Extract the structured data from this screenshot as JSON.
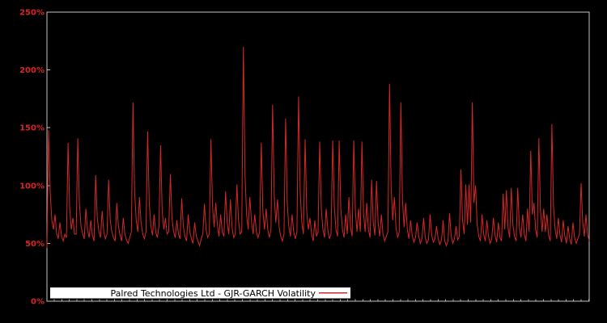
{
  "chart_data": {
    "type": "line",
    "title": "",
    "xlabel": "",
    "ylabel": "",
    "legend": "Palred Technologies Ltd - GJR-GARCH Volatility",
    "legend_position": "bottom-left-inside",
    "grid": false,
    "background_color": "#000000",
    "axis_color": "#c4c4c4",
    "line_color": "#d62728",
    "tick_label_color": "#d62728",
    "legend_bg_color": "#ffffff",
    "legend_text_color": "#000000",
    "ylim": [
      0,
      250
    ],
    "yticks": [
      250,
      200,
      150,
      100,
      50,
      0
    ],
    "ytick_labels": [
      "250%",
      "200%",
      "150%",
      "100%",
      "50%",
      "0%"
    ],
    "y_unit": "percent",
    "values": [
      46,
      148,
      95,
      70,
      62,
      75,
      58,
      54,
      68,
      56,
      52,
      58,
      55,
      137,
      80,
      62,
      72,
      58,
      58,
      141,
      85,
      65,
      58,
      54,
      80,
      62,
      55,
      70,
      57,
      52,
      109,
      72,
      60,
      55,
      78,
      60,
      54,
      58,
      105,
      70,
      60,
      55,
      52,
      85,
      65,
      57,
      52,
      72,
      58,
      53,
      50,
      55,
      60,
      172,
      95,
      70,
      60,
      90,
      68,
      58,
      54,
      60,
      147,
      85,
      65,
      57,
      75,
      60,
      55,
      65,
      135,
      78,
      62,
      72,
      58,
      60,
      110,
      72,
      60,
      55,
      70,
      58,
      54,
      89,
      65,
      56,
      52,
      75,
      60,
      54,
      50,
      68,
      56,
      52,
      48,
      54,
      58,
      84,
      62,
      55,
      58,
      140,
      82,
      64,
      85,
      66,
      56,
      75,
      60,
      56,
      95,
      68,
      58,
      88,
      64,
      55,
      58,
      101,
      70,
      58,
      60,
      220,
      110,
      75,
      62,
      90,
      68,
      58,
      75,
      60,
      55,
      60,
      137,
      78,
      62,
      80,
      62,
      55,
      62,
      170,
      92,
      68,
      88,
      64,
      56,
      52,
      58,
      158,
      85,
      64,
      56,
      75,
      60,
      54,
      60,
      177,
      95,
      68,
      58,
      140,
      78,
      62,
      72,
      58,
      52,
      70,
      56,
      60,
      138,
      80,
      62,
      55,
      80,
      62,
      54,
      58,
      139,
      82,
      62,
      56,
      139,
      80,
      62,
      55,
      75,
      58,
      90,
      64,
      56,
      139,
      78,
      60,
      80,
      60,
      138,
      76,
      60,
      85,
      62,
      55,
      105,
      68,
      57,
      104,
      68,
      56,
      75,
      58,
      52,
      56,
      60,
      188,
      98,
      70,
      90,
      64,
      55,
      60,
      172,
      88,
      64,
      85,
      62,
      54,
      70,
      57,
      51,
      55,
      68,
      56,
      50,
      54,
      72,
      55,
      50,
      53,
      75,
      57,
      51,
      54,
      65,
      54,
      49,
      53,
      70,
      52,
      48,
      52,
      76,
      56,
      50,
      54,
      65,
      53,
      56,
      114,
      70,
      58,
      101,
      66,
      101,
      68,
      172,
      85,
      100,
      66,
      56,
      52,
      75,
      58,
      52,
      70,
      56,
      50,
      54,
      72,
      57,
      51,
      68,
      55,
      52,
      93,
      62,
      96,
      64,
      55,
      98,
      66,
      56,
      52,
      98,
      64,
      55,
      75,
      58,
      52,
      80,
      60,
      130,
      75,
      85,
      62,
      55,
      141,
      78,
      60,
      80,
      60,
      75,
      57,
      52,
      153,
      82,
      62,
      54,
      72,
      57,
      51,
      70,
      56,
      50,
      65,
      54,
      49,
      68,
      55,
      50,
      54,
      58,
      102,
      68,
      56,
      75,
      58,
      52
    ]
  }
}
